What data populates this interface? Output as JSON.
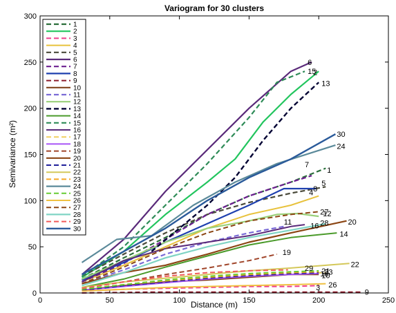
{
  "chart_data": {
    "type": "line",
    "title": "Variogram for 30 clusters",
    "xlabel": "Distance (m)",
    "ylabel": "Semivariance (m²)",
    "xlim": [
      0,
      250
    ],
    "ylim": [
      0,
      300
    ],
    "xticks": [
      "0",
      "50",
      "100",
      "150",
      "200",
      "250"
    ],
    "yticks": [
      "0",
      "50",
      "100",
      "150",
      "200",
      "250",
      "300"
    ],
    "legend_position": "top-left",
    "grid": false,
    "series": [
      {
        "name": "1",
        "color": "#2a6e3a",
        "dashed": true,
        "width": 2.2,
        "points": [
          [
            30,
            15
          ],
          [
            60,
            38
          ],
          [
            90,
            60
          ],
          [
            120,
            85
          ],
          [
            150,
            105
          ],
          [
            180,
            120
          ],
          [
            205,
            135
          ]
        ]
      },
      {
        "name": "2",
        "color": "#22c55e",
        "dashed": false,
        "width": 2.2,
        "points": [
          [
            30,
            17
          ],
          [
            60,
            45
          ],
          [
            90,
            85
          ],
          [
            120,
            120
          ],
          [
            140,
            145
          ],
          [
            160,
            185
          ],
          [
            180,
            215
          ],
          [
            200,
            240
          ]
        ]
      },
      {
        "name": "3",
        "color": "#ee3d8e",
        "dashed": true,
        "width": 2.0,
        "points": [
          [
            30,
            2
          ],
          [
            60,
            4
          ],
          [
            90,
            5
          ],
          [
            120,
            6
          ],
          [
            150,
            7
          ],
          [
            180,
            7
          ],
          [
            200,
            8
          ]
        ]
      },
      {
        "name": "4",
        "color": "#e8c23c",
        "dashed": false,
        "width": 2.0,
        "points": [
          [
            30,
            12
          ],
          [
            60,
            30
          ],
          [
            90,
            50
          ],
          [
            120,
            70
          ],
          [
            150,
            85
          ],
          [
            180,
            95
          ],
          [
            200,
            105
          ]
        ]
      },
      {
        "name": "5",
        "color": "#4a4a3a",
        "dashed": true,
        "width": 2.2,
        "points": [
          [
            30,
            18
          ],
          [
            60,
            42
          ],
          [
            90,
            65
          ],
          [
            120,
            85
          ],
          [
            150,
            98
          ],
          [
            180,
            108
          ],
          [
            205,
            115
          ]
        ]
      },
      {
        "name": "6",
        "color": "#5a2a7a",
        "dashed": false,
        "width": 2.2,
        "points": [
          [
            30,
            20
          ],
          [
            60,
            58
          ],
          [
            90,
            110
          ],
          [
            120,
            155
          ],
          [
            150,
            200
          ],
          [
            180,
            240
          ],
          [
            195,
            250
          ]
        ]
      },
      {
        "name": "7",
        "color": "#6b1f8f",
        "dashed": true,
        "width": 2.2,
        "points": [
          [
            30,
            12
          ],
          [
            60,
            32
          ],
          [
            90,
            58
          ],
          [
            120,
            85
          ],
          [
            150,
            105
          ],
          [
            180,
            120
          ],
          [
            195,
            127
          ]
        ]
      },
      {
        "name": "8",
        "color": "#1e40af",
        "dashed": false,
        "width": 2.2,
        "points": [
          [
            30,
            14
          ],
          [
            60,
            33
          ],
          [
            90,
            55
          ],
          [
            120,
            75
          ],
          [
            150,
            95
          ],
          [
            175,
            113
          ],
          [
            198,
            113
          ]
        ]
      },
      {
        "name": "9",
        "color": "#8b1a2a",
        "dashed": true,
        "width": 2.0,
        "points": [
          [
            30,
            0
          ],
          [
            80,
            1
          ],
          [
            130,
            1
          ],
          [
            180,
            1
          ],
          [
            230,
            1
          ]
        ]
      },
      {
        "name": "10",
        "color": "#7a3a10",
        "dashed": false,
        "width": 2.0,
        "points": [
          [
            30,
            3
          ],
          [
            60,
            8
          ],
          [
            90,
            12
          ],
          [
            120,
            14
          ],
          [
            150,
            17
          ],
          [
            180,
            20
          ],
          [
            200,
            20
          ]
        ]
      },
      {
        "name": "11",
        "color": "#7a6bd6",
        "dashed": true,
        "width": 2.2,
        "points": [
          [
            30,
            10
          ],
          [
            60,
            25
          ],
          [
            90,
            42
          ],
          [
            120,
            55
          ],
          [
            150,
            65
          ],
          [
            175,
            72
          ]
        ]
      },
      {
        "name": "12",
        "color": "#9ad07a",
        "dashed": false,
        "width": 2.2,
        "points": [
          [
            30,
            15
          ],
          [
            60,
            35
          ],
          [
            90,
            55
          ],
          [
            120,
            70
          ],
          [
            150,
            78
          ],
          [
            170,
            85
          ],
          [
            185,
            86
          ],
          [
            200,
            83
          ]
        ]
      },
      {
        "name": "13",
        "color": "#000033",
        "dashed": true,
        "width": 2.4,
        "points": [
          [
            80,
            45
          ],
          [
            100,
            70
          ],
          [
            120,
            95
          ],
          [
            140,
            125
          ],
          [
            160,
            165
          ],
          [
            180,
            200
          ],
          [
            200,
            228
          ]
        ]
      },
      {
        "name": "14",
        "color": "#4a9a2a",
        "dashed": false,
        "width": 2.0,
        "points": [
          [
            30,
            6
          ],
          [
            60,
            15
          ],
          [
            90,
            28
          ],
          [
            120,
            40
          ],
          [
            150,
            52
          ],
          [
            180,
            60
          ],
          [
            213,
            65
          ]
        ]
      },
      {
        "name": "15",
        "color": "#2e8b57",
        "dashed": true,
        "width": 2.2,
        "points": [
          [
            30,
            18
          ],
          [
            60,
            50
          ],
          [
            90,
            95
          ],
          [
            120,
            140
          ],
          [
            150,
            190
          ],
          [
            170,
            228
          ],
          [
            190,
            240
          ]
        ]
      },
      {
        "name": "16",
        "color": "#5a2a7a",
        "dashed": false,
        "width": 2.0,
        "points": [
          [
            30,
            12
          ],
          [
            60,
            35
          ],
          [
            90,
            48
          ],
          [
            120,
            55
          ],
          [
            150,
            62
          ],
          [
            180,
            72
          ],
          [
            190,
            74
          ]
        ]
      },
      {
        "name": "17",
        "color": "#f0d060",
        "dashed": true,
        "width": 2.0,
        "points": [
          [
            30,
            4
          ],
          [
            60,
            9
          ],
          [
            90,
            14
          ],
          [
            120,
            18
          ],
          [
            150,
            20
          ],
          [
            180,
            21
          ],
          [
            205,
            22
          ]
        ]
      },
      {
        "name": "18",
        "color": "#a855f7",
        "dashed": false,
        "width": 2.0,
        "points": [
          [
            30,
            3
          ],
          [
            60,
            7
          ],
          [
            90,
            11
          ],
          [
            120,
            15
          ],
          [
            150,
            18
          ],
          [
            180,
            20
          ],
          [
            200,
            21
          ]
        ]
      },
      {
        "name": "19",
        "color": "#a0452a",
        "dashed": true,
        "width": 2.0,
        "points": [
          [
            30,
            5
          ],
          [
            60,
            12
          ],
          [
            90,
            20
          ],
          [
            120,
            27
          ],
          [
            150,
            35
          ],
          [
            170,
            42
          ]
        ]
      },
      {
        "name": "20",
        "color": "#8b4513",
        "dashed": false,
        "width": 2.2,
        "points": [
          [
            30,
            10
          ],
          [
            60,
            22
          ],
          [
            90,
            30
          ],
          [
            120,
            42
          ],
          [
            150,
            55
          ],
          [
            180,
            65
          ],
          [
            220,
            78
          ]
        ]
      },
      {
        "name": "21",
        "color": "#1e1e9a",
        "dashed": true,
        "width": 2.0,
        "points": [
          [
            30,
            3
          ],
          [
            60,
            8
          ],
          [
            90,
            12
          ],
          [
            120,
            16
          ],
          [
            150,
            19
          ],
          [
            180,
            21
          ],
          [
            200,
            22
          ]
        ]
      },
      {
        "name": "22",
        "color": "#d4c85a",
        "dashed": false,
        "width": 2.0,
        "points": [
          [
            30,
            6
          ],
          [
            60,
            12
          ],
          [
            90,
            16
          ],
          [
            120,
            20
          ],
          [
            150,
            24
          ],
          [
            180,
            27
          ],
          [
            222,
            32
          ]
        ]
      },
      {
        "name": "23",
        "color": "#f5a623",
        "dashed": true,
        "width": 2.0,
        "points": [
          [
            30,
            4
          ],
          [
            60,
            9
          ],
          [
            90,
            13
          ],
          [
            120,
            17
          ],
          [
            150,
            20
          ],
          [
            180,
            22
          ],
          [
            200,
            23
          ]
        ]
      },
      {
        "name": "24",
        "color": "#5b8a9a",
        "dashed": false,
        "width": 2.2,
        "points": [
          [
            30,
            33
          ],
          [
            55,
            58
          ],
          [
            80,
            62
          ],
          [
            110,
            95
          ],
          [
            140,
            120
          ],
          [
            170,
            140
          ],
          [
            212,
            160
          ]
        ]
      },
      {
        "name": "25",
        "color": "#66cc33",
        "dashed": true,
        "width": 2.0,
        "points": [
          [
            30,
            4
          ],
          [
            60,
            9
          ],
          [
            90,
            14
          ],
          [
            120,
            18
          ],
          [
            150,
            21
          ],
          [
            180,
            23
          ],
          [
            200,
            24
          ]
        ]
      },
      {
        "name": "26",
        "color": "#f0c040",
        "dashed": false,
        "width": 2.0,
        "points": [
          [
            30,
            2
          ],
          [
            60,
            4
          ],
          [
            90,
            6
          ],
          [
            120,
            7
          ],
          [
            150,
            8
          ],
          [
            180,
            9
          ],
          [
            205,
            10
          ]
        ]
      },
      {
        "name": "27",
        "color": "#8b4513",
        "dashed": true,
        "width": 2.0,
        "points": [
          [
            30,
            10
          ],
          [
            60,
            28
          ],
          [
            90,
            48
          ],
          [
            120,
            65
          ],
          [
            150,
            78
          ],
          [
            180,
            85
          ],
          [
            200,
            88
          ]
        ]
      },
      {
        "name": "28",
        "color": "#7fd4c4",
        "dashed": false,
        "width": 2.2,
        "points": [
          [
            30,
            8
          ],
          [
            60,
            22
          ],
          [
            90,
            38
          ],
          [
            120,
            50
          ],
          [
            150,
            60
          ],
          [
            180,
            68
          ],
          [
            205,
            75
          ]
        ]
      },
      {
        "name": "29",
        "color": "#f05a5a",
        "dashed": true,
        "width": 2.0,
        "points": [
          [
            30,
            5
          ],
          [
            60,
            12
          ],
          [
            90,
            18
          ],
          [
            120,
            22
          ],
          [
            150,
            24
          ],
          [
            178,
            25
          ]
        ]
      },
      {
        "name": "30",
        "color": "#2a5a9a",
        "dashed": false,
        "width": 2.4,
        "points": [
          [
            30,
            20
          ],
          [
            60,
            45
          ],
          [
            90,
            70
          ],
          [
            120,
            100
          ],
          [
            150,
            125
          ],
          [
            180,
            145
          ],
          [
            212,
            172
          ]
        ]
      }
    ],
    "end_labels": [
      {
        "text": "6",
        "x": 192,
        "y": 250
      },
      {
        "text": "15",
        "x": 192,
        "y": 240
      },
      {
        "text": "2",
        "x": 196,
        "y": 239
      },
      {
        "text": "13",
        "x": 202,
        "y": 227
      },
      {
        "text": "30",
        "x": 213,
        "y": 172
      },
      {
        "text": "24",
        "x": 213,
        "y": 159
      },
      {
        "text": "7",
        "x": 190,
        "y": 139
      },
      {
        "text": "1",
        "x": 206,
        "y": 133
      },
      {
        "text": "5",
        "x": 202,
        "y": 119
      },
      {
        "text": "8",
        "x": 196,
        "y": 113
      },
      {
        "text": "4",
        "x": 193,
        "y": 109
      },
      {
        "text": "27",
        "x": 201,
        "y": 88
      },
      {
        "text": "12",
        "x": 203,
        "y": 86
      },
      {
        "text": "11",
        "x": 175,
        "y": 77
      },
      {
        "text": "16",
        "x": 194,
        "y": 73
      },
      {
        "text": "28",
        "x": 201,
        "y": 76
      },
      {
        "text": "20",
        "x": 221,
        "y": 77
      },
      {
        "text": "14",
        "x": 215,
        "y": 64
      },
      {
        "text": "19",
        "x": 174,
        "y": 44
      },
      {
        "text": "22",
        "x": 223,
        "y": 31
      },
      {
        "text": "29",
        "x": 190,
        "y": 27
      },
      {
        "text": "21",
        "x": 202,
        "y": 24
      },
      {
        "text": "23",
        "x": 204,
        "y": 23
      },
      {
        "text": "18",
        "x": 201,
        "y": 21
      },
      {
        "text": "10",
        "x": 202,
        "y": 19
      },
      {
        "text": "26",
        "x": 207,
        "y": 9
      },
      {
        "text": "3",
        "x": 198,
        "y": 6
      },
      {
        "text": "9",
        "x": 233,
        "y": 1
      }
    ]
  }
}
